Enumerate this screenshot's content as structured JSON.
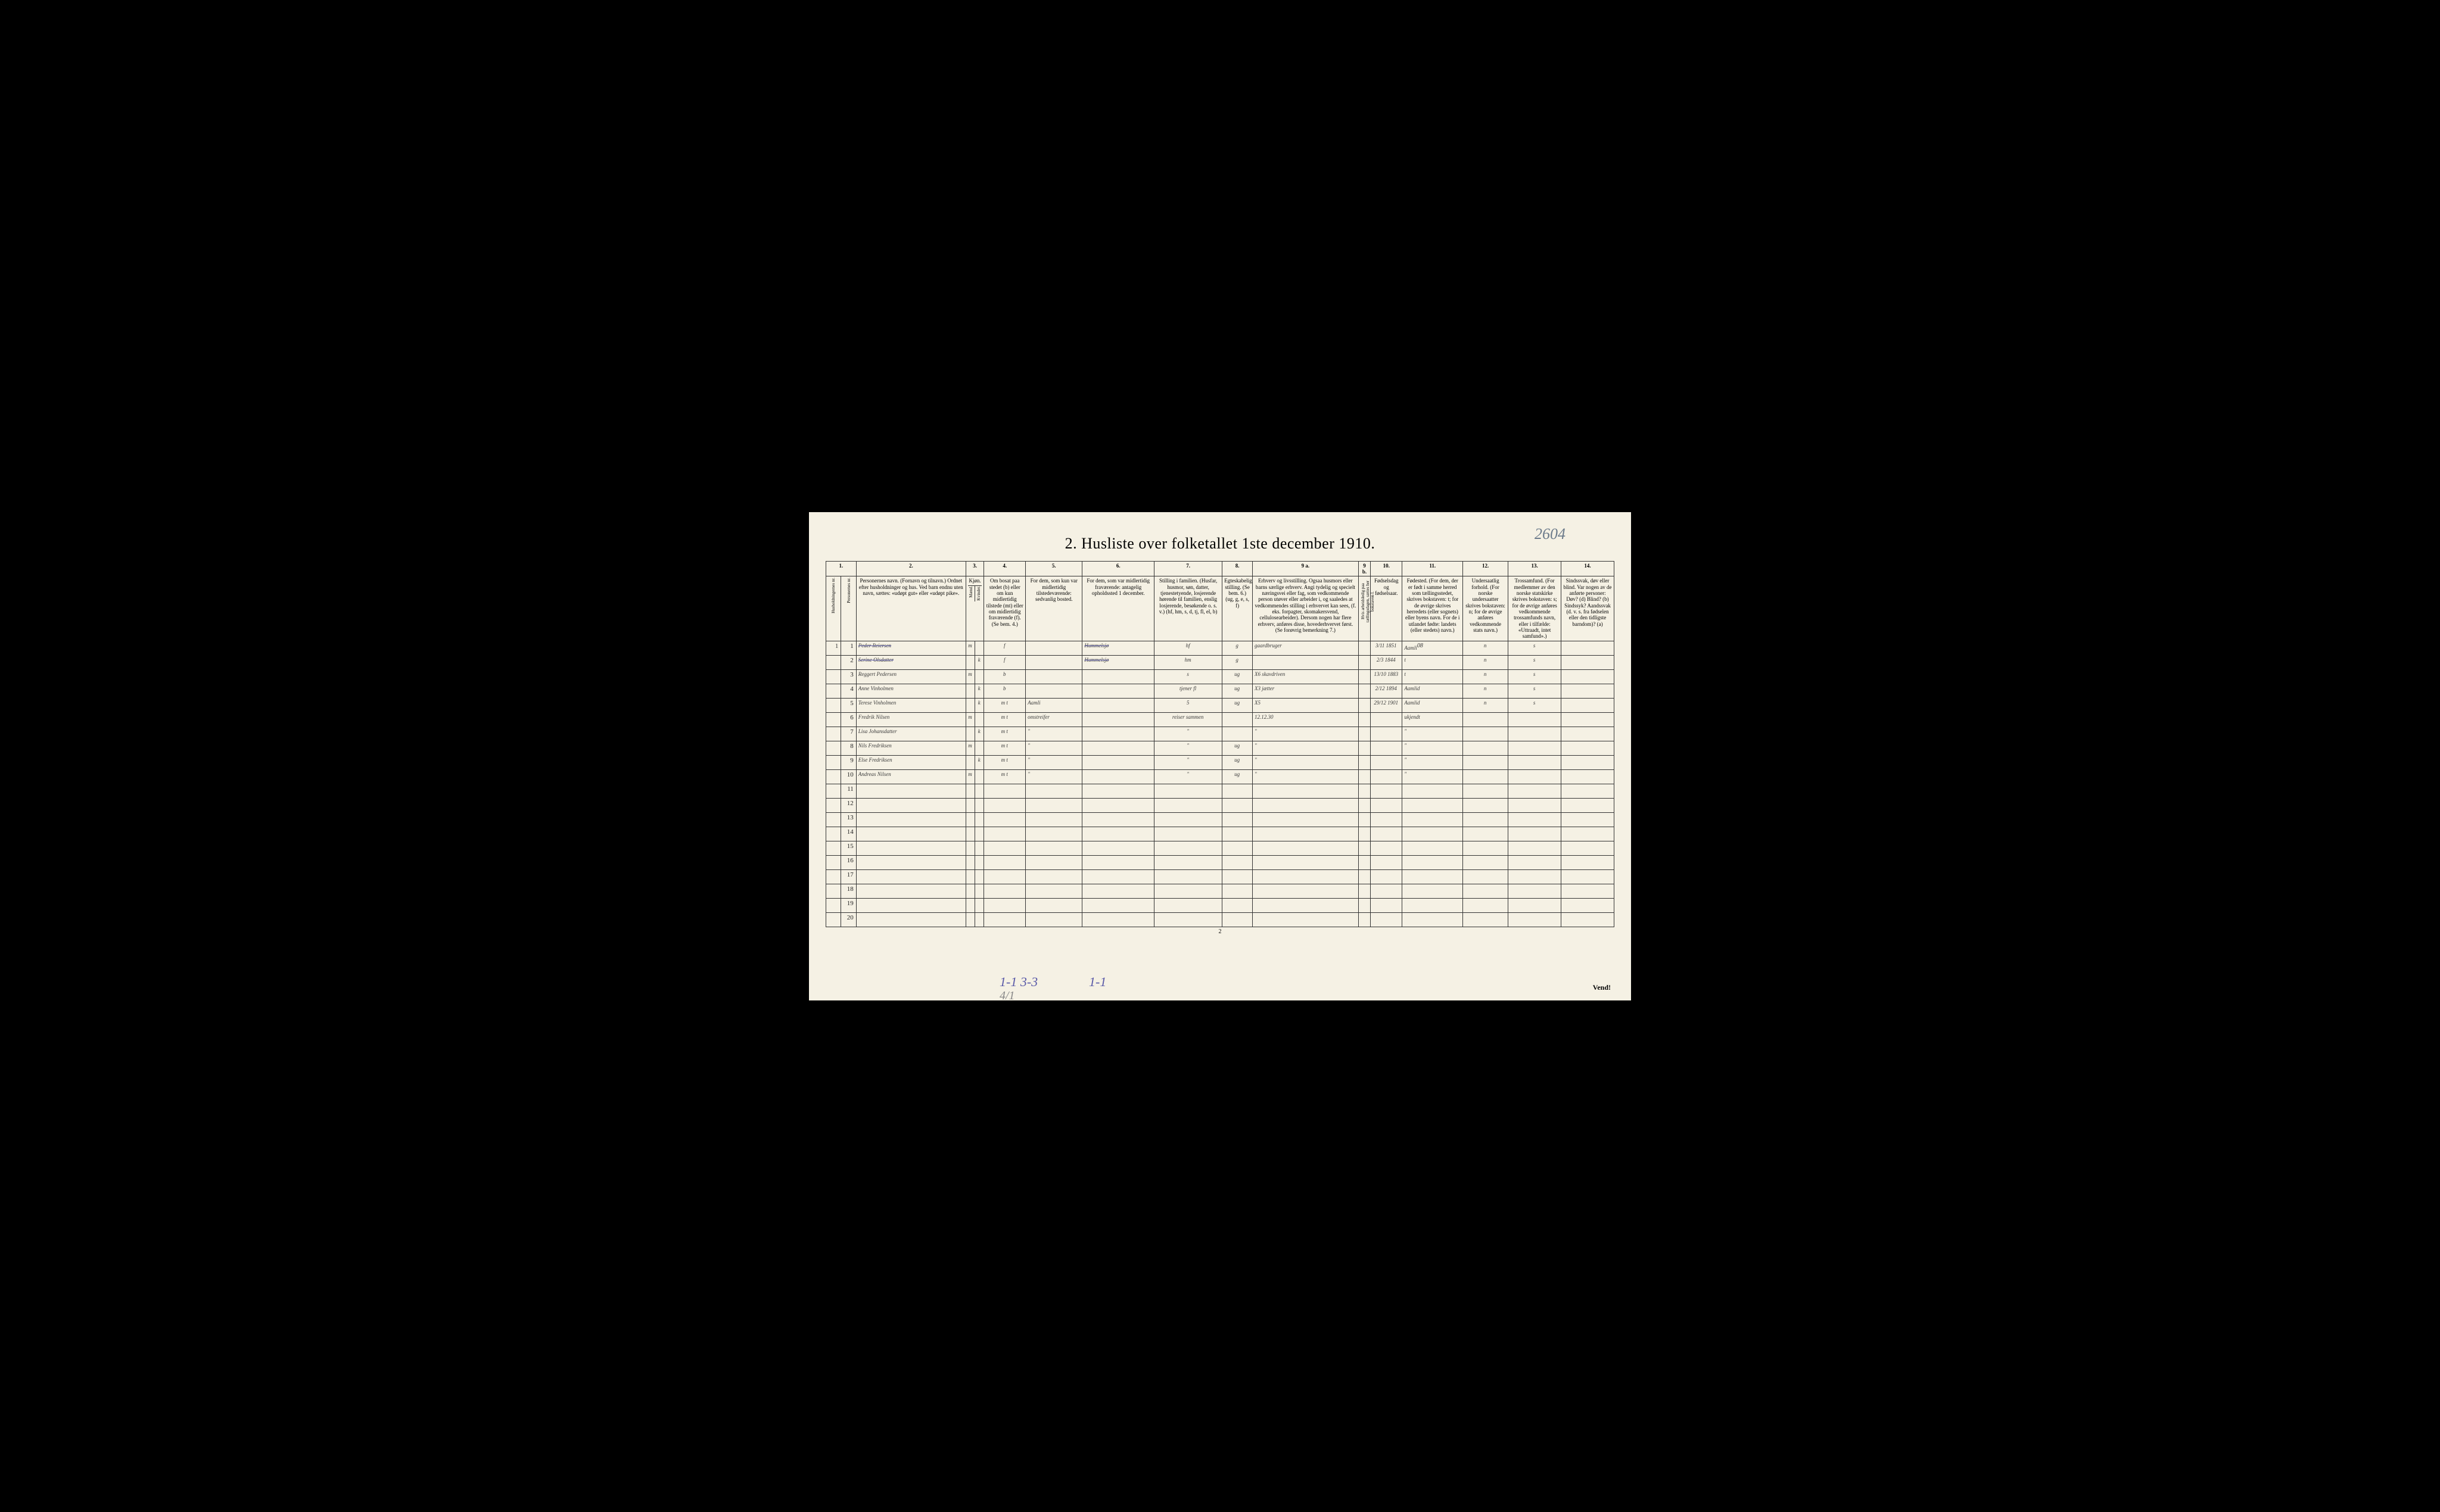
{
  "pencil_note": "2604",
  "title": "2.  Husliste over folketallet 1ste december 1910.",
  "column_numbers": [
    "1.",
    "",
    "2.",
    "3.",
    "",
    "4.",
    "5.",
    "6.",
    "7.",
    "8.",
    "9 a.",
    "9 b.",
    "10.",
    "11.",
    "12.",
    "13.",
    "14."
  ],
  "headers": {
    "h1a": "Husholdningernes nr.",
    "h1b": "Personernes nr.",
    "h2": "Personernes navn.\n(Fornavn og tilnavn.)\nOrdnet efter husholdninger og hus.\nVed barn endnu uten navn, sættes: «udøpt gut» eller «udøpt pike».",
    "h3": "Kjøn.",
    "h3m": "Mænd.",
    "h3k": "Kvinder.",
    "h4": "Om bosat paa stedet (b) eller om kun midlertidig tilstede (mt) eller om midlertidig fraværende (f).\n(Se bem. 4.)",
    "h5": "For dem, som kun var midlertidig tilstedeværende:\nsedvanlig bosted.",
    "h6": "For dem, som var midlertidig fraværende:\nantagelig opholdssted 1 december.",
    "h7": "Stilling i familien.\n(Husfar, husmor, søn, datter, tjenestetyende, losjerende hørende til familien, enslig losjerende, besøkende o. s. v.)\n(hf, hm, s, d, tj, fl, el, b)",
    "h8": "Egteskabelig stilling.\n(Se bem. 6.)\n(ug, g, e, s, f)",
    "h9a": "Erhverv og livsstilling.\nOgsaa husmors eller barns særlige erhverv.\nAngi tydelig og specielt næringsvei eller fag, som vedkommende person utøver eller arbeider i, og saaledes at vedkommendes stilling i erhvervet kan sees, (f. eks. forpagter, skomakersvend, cellulosearbeider). Dersom nogen har flere erhverv, anføres disse, hovederhvervet først.\n(Se forøvrig bemerkning 7.)",
    "h9b": "Hvis arbeidsledig paa tællingsdagen, sættes her bokstaven l.",
    "h10": "Fødselsdag og fødselsaar.",
    "h11": "Fødested.\n(For dem, der er født i samme herred som tællingsstedet, skrives bokstaven: t; for de øvrige skrives herredets (eller sognets) eller byens navn.\nFor de i utlandet fødte: landets (eller stedets) navn.)",
    "h12": "Undersaatlig forhold.\n(For norske undersaatter skrives bokstaven: n;\nfor de øvrige anføres vedkommende stats navn.)",
    "h13": "Trossamfund.\n(For medlemmer av den norske statskirke skrives bokstaven: s;\nfor de øvrige anføres vedkommende trossamfunds navn, eller i tilfælde: «Uttraadt, intet samfund».)",
    "h14": "Sindssvak, døv eller blind.\nVar nogen av de anførte personer:\nDøv?    (d)\nBlind?   (b)\nSindssyk?\nAandssvak (d. v. s. fra fødselen eller den tidligste barndom)?  (a)"
  },
  "rows": [
    {
      "hh": "1",
      "pn": "1",
      "name": "Peder Reiersen",
      "sex_m": "m",
      "sex_k": "",
      "res": "f",
      "c5": "",
      "c6": "Hummelsjø",
      "c7": "hf",
      "c8": "g",
      "c9a": "gaardbruger",
      "c9b": "",
      "c10": "3/11 1851",
      "c11": "Aamli",
      "c11sup": "08",
      "c12": "n",
      "c13": "s",
      "c14": "",
      "struck": true
    },
    {
      "hh": "",
      "pn": "2",
      "name": "Serine Olsdatter",
      "sex_m": "",
      "sex_k": "k",
      "res": "f",
      "c5": "",
      "c6": "Hummelsjø",
      "c7": "hm",
      "c8": "g",
      "c9a": "",
      "c9b": "",
      "c10": "2/3 1844",
      "c11": "t",
      "c12": "n",
      "c13": "s",
      "c14": "",
      "struck": true
    },
    {
      "hh": "",
      "pn": "3",
      "name": "Reggert Pedersen",
      "sex_m": "m",
      "sex_k": "",
      "res": "b",
      "c5": "",
      "c6": "",
      "c7": "s",
      "c8": "ug",
      "c9a": "X6 skavdriven",
      "c9b": "",
      "c10": "13/10 1883",
      "c11": "t",
      "c12": "n",
      "c13": "s",
      "c14": ""
    },
    {
      "hh": "",
      "pn": "4",
      "name": "Anne Vinholmen",
      "sex_m": "",
      "sex_k": "k",
      "res": "b",
      "c5": "",
      "c6": "",
      "c7": "tjener  fl",
      "c8": "ug",
      "c9a": "X3  jætter",
      "c9b": "",
      "c10": "2/12 1894",
      "c11": "Aamlid",
      "c12": "n",
      "c13": "s",
      "c14": ""
    },
    {
      "hh": "",
      "pn": "5",
      "name": "Terese Vinholmen",
      "sex_m": "",
      "sex_k": "k",
      "res": "m t",
      "c5": "Aamli",
      "c6": "",
      "c7": "5",
      "c8": "ug",
      "c9a": "X5",
      "c9b": "",
      "c10": "29/12 1901",
      "c11": "Aamlid",
      "c12": "n",
      "c13": "s",
      "c14": ""
    },
    {
      "hh": "",
      "pn": "6",
      "name": "Fredrik Nilsen",
      "sex_m": "m",
      "sex_k": "",
      "res": "m t",
      "c5": "omstreifer",
      "c6": "",
      "c7": "reiser sammen",
      "c8": "",
      "c9a": "12.12.30",
      "c9b": "",
      "c10": "",
      "c11": "ukjendt",
      "c12": "",
      "c13": "",
      "c14": ""
    },
    {
      "hh": "",
      "pn": "7",
      "name": "Lisa Johansdatter",
      "sex_m": "",
      "sex_k": "k",
      "res": "m t",
      "c5": "\"",
      "c6": "",
      "c7": "\"",
      "c8": "",
      "c9a": "\"",
      "c9b": "",
      "c10": "",
      "c11": "\"",
      "c12": "",
      "c13": "",
      "c14": ""
    },
    {
      "hh": "",
      "pn": "8",
      "name": "Nils Fredriksen",
      "sex_m": "m",
      "sex_k": "",
      "res": "m t",
      "c5": "\"",
      "c6": "",
      "c7": "\"",
      "c8": "ug",
      "c9a": "\"",
      "c9b": "",
      "c10": "",
      "c11": "\"",
      "c12": "",
      "c13": "",
      "c14": ""
    },
    {
      "hh": "",
      "pn": "9",
      "name": "Else Fredriksen",
      "sex_m": "",
      "sex_k": "k",
      "res": "m t",
      "c5": "\"",
      "c6": "",
      "c7": "\"",
      "c8": "ug",
      "c9a": "\"",
      "c9b": "",
      "c10": "",
      "c11": "\"",
      "c12": "",
      "c13": "",
      "c14": ""
    },
    {
      "hh": "",
      "pn": "10",
      "name": "Andreas Nilsen",
      "sex_m": "m",
      "sex_k": "",
      "res": "m t",
      "c5": "\"",
      "c6": "",
      "c7": "\"",
      "c8": "ug",
      "c9a": "\"",
      "c9b": "",
      "c10": "",
      "c11": "\"",
      "c12": "",
      "c13": "",
      "c14": ""
    },
    {
      "hh": "",
      "pn": "11",
      "name": "",
      "sex_m": "",
      "sex_k": "",
      "res": "",
      "c5": "",
      "c6": "",
      "c7": "",
      "c8": "",
      "c9a": "",
      "c9b": "",
      "c10": "",
      "c11": "",
      "c12": "",
      "c13": "",
      "c14": ""
    },
    {
      "hh": "",
      "pn": "12",
      "name": "",
      "sex_m": "",
      "sex_k": "",
      "res": "",
      "c5": "",
      "c6": "",
      "c7": "",
      "c8": "",
      "c9a": "",
      "c9b": "",
      "c10": "",
      "c11": "",
      "c12": "",
      "c13": "",
      "c14": ""
    },
    {
      "hh": "",
      "pn": "13",
      "name": "",
      "sex_m": "",
      "sex_k": "",
      "res": "",
      "c5": "",
      "c6": "",
      "c7": "",
      "c8": "",
      "c9a": "",
      "c9b": "",
      "c10": "",
      "c11": "",
      "c12": "",
      "c13": "",
      "c14": ""
    },
    {
      "hh": "",
      "pn": "14",
      "name": "",
      "sex_m": "",
      "sex_k": "",
      "res": "",
      "c5": "",
      "c6": "",
      "c7": "",
      "c8": "",
      "c9a": "",
      "c9b": "",
      "c10": "",
      "c11": "",
      "c12": "",
      "c13": "",
      "c14": ""
    },
    {
      "hh": "",
      "pn": "15",
      "name": "",
      "sex_m": "",
      "sex_k": "",
      "res": "",
      "c5": "",
      "c6": "",
      "c7": "",
      "c8": "",
      "c9a": "",
      "c9b": "",
      "c10": "",
      "c11": "",
      "c12": "",
      "c13": "",
      "c14": ""
    },
    {
      "hh": "",
      "pn": "16",
      "name": "",
      "sex_m": "",
      "sex_k": "",
      "res": "",
      "c5": "",
      "c6": "",
      "c7": "",
      "c8": "",
      "c9a": "",
      "c9b": "",
      "c10": "",
      "c11": "",
      "c12": "",
      "c13": "",
      "c14": ""
    },
    {
      "hh": "",
      "pn": "17",
      "name": "",
      "sex_m": "",
      "sex_k": "",
      "res": "",
      "c5": "",
      "c6": "",
      "c7": "",
      "c8": "",
      "c9a": "",
      "c9b": "",
      "c10": "",
      "c11": "",
      "c12": "",
      "c13": "",
      "c14": ""
    },
    {
      "hh": "",
      "pn": "18",
      "name": "",
      "sex_m": "",
      "sex_k": "",
      "res": "",
      "c5": "",
      "c6": "",
      "c7": "",
      "c8": "",
      "c9a": "",
      "c9b": "",
      "c10": "",
      "c11": "",
      "c12": "",
      "c13": "",
      "c14": ""
    },
    {
      "hh": "",
      "pn": "19",
      "name": "",
      "sex_m": "",
      "sex_k": "",
      "res": "",
      "c5": "",
      "c6": "",
      "c7": "",
      "c8": "",
      "c9a": "",
      "c9b": "",
      "c10": "",
      "c11": "",
      "c12": "",
      "c13": "",
      "c14": ""
    },
    {
      "hh": "",
      "pn": "20",
      "name": "",
      "sex_m": "",
      "sex_k": "",
      "res": "",
      "c5": "",
      "c6": "",
      "c7": "",
      "c8": "",
      "c9a": "",
      "c9b": "",
      "c10": "",
      "c11": "",
      "c12": "",
      "c13": "",
      "c14": ""
    }
  ],
  "bottom_scrawl": "1-1  3-3",
  "bottom_scrawl2": "1-1",
  "bottom_scrawl3": "4/1",
  "page_num": "2",
  "vend": "Vend!",
  "colors": {
    "page_bg": "#f5f1e4",
    "ink": "#333",
    "handwriting": "#3a3a3a",
    "pencil": "#6b7a8a",
    "blue_pencil": "#5a5aa8"
  }
}
